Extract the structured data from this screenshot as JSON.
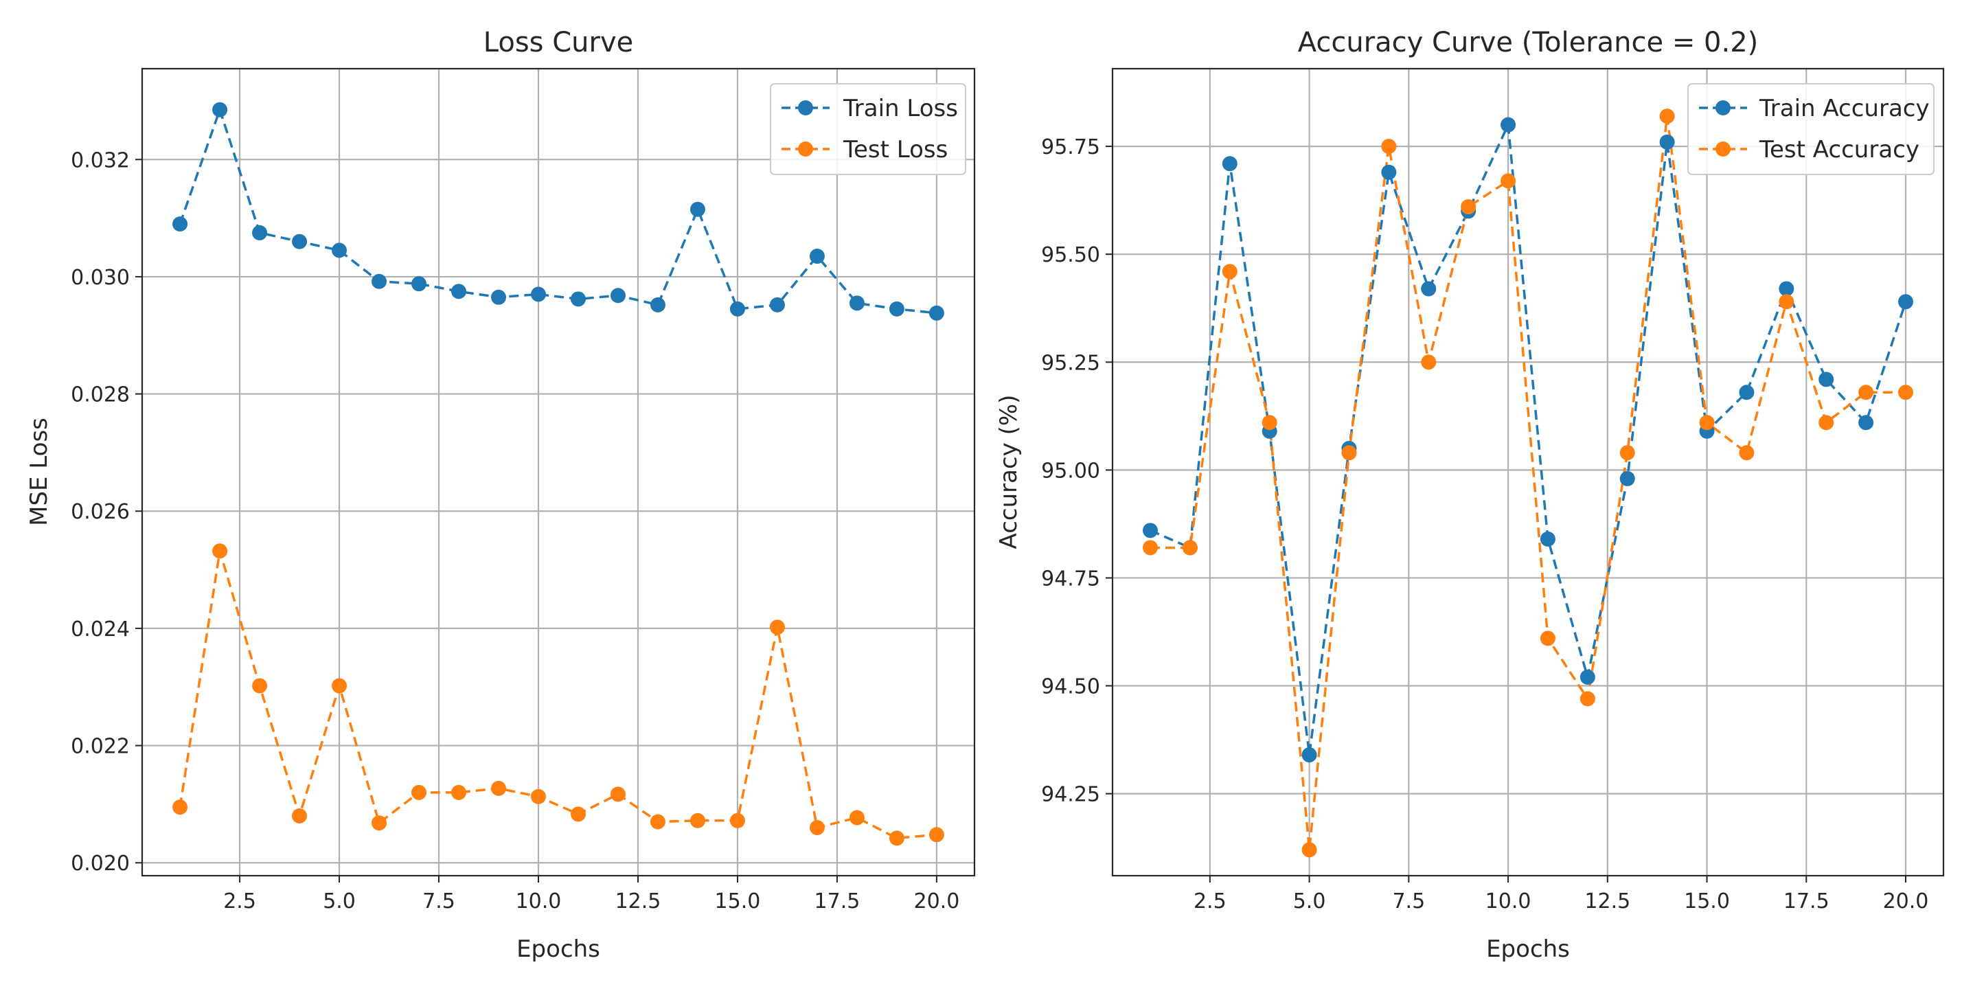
{
  "chart_data": [
    {
      "id": "loss",
      "type": "line",
      "title": "Loss Curve",
      "xlabel": "Epochs",
      "ylabel": "MSE Loss",
      "x": [
        1,
        2,
        3,
        4,
        5,
        6,
        7,
        8,
        9,
        10,
        11,
        12,
        13,
        14,
        15,
        16,
        17,
        18,
        19,
        20
      ],
      "xlim": [
        0.05,
        20.95
      ],
      "ylim": [
        0.01978,
        0.03355
      ],
      "xticks": [
        2.5,
        5,
        7.5,
        10,
        12.5,
        15,
        17.5,
        20
      ],
      "xtick_labels": [
        "2.5",
        "5.0",
        "7.5",
        "10.0",
        "12.5",
        "15.0",
        "17.5",
        "20.0"
      ],
      "yticks": [
        0.02,
        0.022,
        0.024,
        0.026,
        0.028,
        0.03,
        0.032
      ],
      "ytick_labels": [
        "0.020",
        "0.022",
        "0.024",
        "0.026",
        "0.028",
        "0.030",
        "0.032"
      ],
      "grid": true,
      "legend_position": "top-right",
      "series": [
        {
          "name": "Train Loss",
          "color": "#1f77b4",
          "marker": "circle",
          "linestyle": "dashed",
          "values": [
            0.0309,
            0.03285,
            0.03075,
            0.0306,
            0.03045,
            0.02992,
            0.02988,
            0.02975,
            0.02965,
            0.0297,
            0.02962,
            0.02968,
            0.02952,
            0.03115,
            0.02945,
            0.02952,
            0.03035,
            0.02955,
            0.02945,
            0.02938
          ]
        },
        {
          "name": "Test Loss",
          "color": "#ff7f0e",
          "marker": "circle",
          "linestyle": "dashed",
          "values": [
            0.02095,
            0.02532,
            0.02302,
            0.0208,
            0.02302,
            0.02068,
            0.0212,
            0.0212,
            0.02127,
            0.02113,
            0.02083,
            0.02117,
            0.0207,
            0.02072,
            0.02072,
            0.02402,
            0.0206,
            0.02077,
            0.02042,
            0.02048
          ]
        }
      ]
    },
    {
      "id": "accuracy",
      "type": "line",
      "title": "Accuracy Curve (Tolerance = 0.2)",
      "xlabel": "Epochs",
      "ylabel": "Accuracy (%)",
      "x": [
        1,
        2,
        3,
        4,
        5,
        6,
        7,
        8,
        9,
        10,
        11,
        12,
        13,
        14,
        15,
        16,
        17,
        18,
        19,
        20
      ],
      "xlim": [
        0.05,
        20.95
      ],
      "ylim": [
        94.06,
        95.93
      ],
      "xticks": [
        2.5,
        5,
        7.5,
        10,
        12.5,
        15,
        17.5,
        20
      ],
      "xtick_labels": [
        "2.5",
        "5.0",
        "7.5",
        "10.0",
        "12.5",
        "15.0",
        "17.5",
        "20.0"
      ],
      "yticks": [
        94.25,
        94.5,
        94.75,
        95.0,
        95.25,
        95.5,
        95.75
      ],
      "ytick_labels": [
        "94.25",
        "94.50",
        "94.75",
        "95.00",
        "95.25",
        "95.50",
        "95.75"
      ],
      "grid": true,
      "legend_position": "top-right",
      "series": [
        {
          "name": "Train Accuracy",
          "color": "#1f77b4",
          "marker": "circle",
          "linestyle": "dashed",
          "values": [
            94.86,
            94.82,
            95.71,
            95.09,
            94.34,
            95.05,
            95.69,
            95.42,
            95.6,
            95.8,
            94.84,
            94.52,
            94.98,
            95.76,
            95.09,
            95.18,
            95.42,
            95.21,
            95.11,
            95.39
          ]
        },
        {
          "name": "Test Accuracy",
          "color": "#ff7f0e",
          "marker": "circle",
          "linestyle": "dashed",
          "values": [
            94.82,
            94.82,
            95.46,
            95.11,
            94.12,
            95.04,
            95.75,
            95.25,
            95.61,
            95.67,
            94.61,
            94.47,
            95.04,
            95.82,
            95.11,
            95.04,
            95.39,
            95.11,
            95.18,
            95.18
          ]
        }
      ]
    }
  ]
}
